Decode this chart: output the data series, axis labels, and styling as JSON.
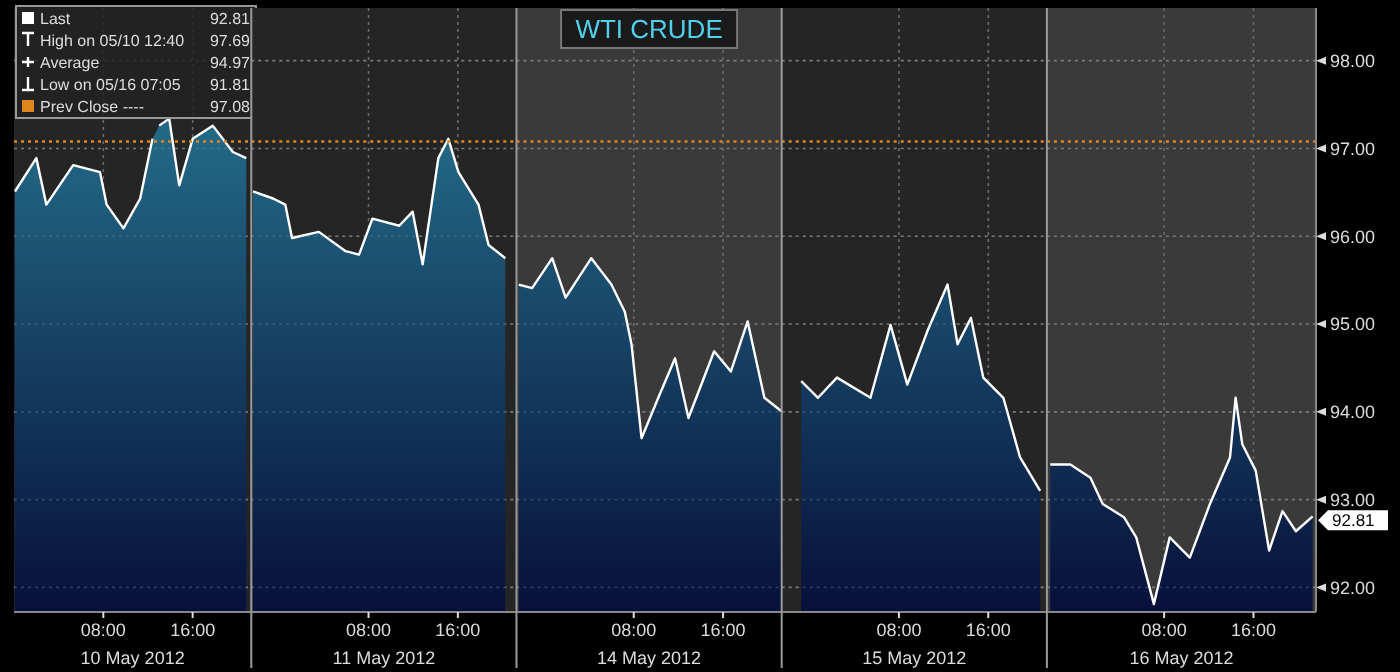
{
  "chart_data": [
    {
      "type": "area",
      "xlabel": "10 May 2012",
      "x": [
        "2012-05-10T00:05",
        "2012-05-10T02:00",
        "2012-05-10T02:54",
        "2012-05-10T05:18",
        "2012-05-10T07:42",
        "2012-05-10T08:18",
        "2012-05-10T09:48",
        "2012-05-10T11:18",
        "2012-05-10T12:24",
        "2012-05-10T12:40",
        "2012-05-10T13:00",
        "2012-05-10T13:54",
        "2012-05-10T14:48",
        "2012-05-10T16:00",
        "2012-05-10T17:48",
        "2012-05-10T19:36",
        "2012-05-10T20:48"
      ],
      "series": [
        {
          "color": "#2a7f99",
          "values": [
            96.51,
            96.89,
            96.36,
            96.81,
            96.73,
            96.36,
            96.09,
            96.43,
            97.11,
            null,
            97.26,
            97.34,
            96.58,
            97.11,
            97.26,
            96.96,
            96.89
          ]
        }
      ],
      "xlim": [
        "2012-05-10T00:00",
        "2012-05-10T21:15"
      ],
      "xticks": [
        {
          "value": "2012-05-10T08:00",
          "label": "08:00"
        },
        {
          "value": "2012-05-10T16:00",
          "label": "16:00"
        }
      ],
      "ylim": [
        91.72,
        98.6
      ],
      "yticks": [
        92,
        93,
        94,
        95,
        96,
        97,
        98
      ],
      "tick_labels": "x",
      "grid": true,
      "ref_lines": [
        {
          "axis": "y",
          "value": 97.08,
          "color": "#e0861c",
          "line_style": "dotted"
        }
      ],
      "annotations": [
        "Last",
        "92.81",
        "High on 05/10 12:40",
        "97.69",
        "Average",
        "94.97",
        "Low on 05/16 07:05",
        "91.81",
        "Prev Close ----",
        "97.08"
      ]
    },
    {
      "type": "area",
      "xlabel": "11 May 2012",
      "x": [
        "2012-05-10T21:39",
        "2012-05-10T23:27",
        "2012-05-11T00:33",
        "2012-05-11T01:09",
        "2012-05-11T03:33",
        "2012-05-11T05:57",
        "2012-05-11T07:09",
        "2012-05-11T08:21",
        "2012-05-11T10:45",
        "2012-05-11T11:57",
        "2012-05-11T12:51",
        "2012-05-11T14:15",
        "2012-05-11T15:09",
        "2012-05-11T16:03",
        "2012-05-11T17:51",
        "2012-05-11T18:45",
        "2012-05-11T20:15"
      ],
      "series": [
        {
          "color": "#2a7f99",
          "values": [
            96.51,
            96.43,
            96.36,
            95.98,
            96.05,
            95.83,
            95.79,
            96.2,
            96.12,
            96.28,
            95.68,
            96.89,
            97.11,
            96.73,
            96.36,
            95.9,
            95.75
          ]
        }
      ],
      "xlim": [
        "2012-05-10T21:30",
        "2012-05-11T21:15"
      ],
      "xticks": [
        {
          "value": "2012-05-11T08:00",
          "label": "08:00"
        },
        {
          "value": "2012-05-11T16:00",
          "label": "16:00"
        }
      ],
      "ylim": [
        91.72,
        98.6
      ],
      "yticks": [
        92,
        93,
        94,
        95,
        96,
        97,
        98
      ],
      "tick_labels": "x",
      "grid": true,
      "ref_lines": [
        {
          "axis": "y",
          "value": 97.08,
          "color": "#e0861c",
          "line_style": "dotted"
        }
      ]
    },
    {
      "type": "area",
      "title": "WTI CRUDE",
      "xlabel": "14 May 2012",
      "x": [
        "2012-05-13T21:42",
        "2012-05-13T22:54",
        "2012-05-14T00:42",
        "2012-05-14T01:54",
        "2012-05-14T04:12",
        "2012-05-14T06:00",
        "2012-05-14T07:12",
        "2012-05-14T07:48",
        "2012-05-14T08:42",
        "2012-05-14T10:12",
        "2012-05-14T11:42",
        "2012-05-14T12:54",
        "2012-05-14T15:12",
        "2012-05-14T16:42",
        "2012-05-14T18:12",
        "2012-05-14T19:42",
        "2012-05-14T21:12"
      ],
      "series": [
        {
          "color": "#2a7f99",
          "values": [
            95.45,
            95.41,
            95.75,
            95.3,
            95.75,
            95.45,
            95.14,
            94.77,
            93.7,
            94.16,
            94.61,
            93.93,
            94.69,
            94.46,
            95.03,
            94.16,
            94.01
          ]
        }
      ],
      "xlim": [
        "2012-05-13T21:30",
        "2012-05-14T21:15"
      ],
      "xticks": [
        {
          "value": "2012-05-14T08:00",
          "label": "08:00"
        },
        {
          "value": "2012-05-14T16:00",
          "label": "16:00"
        }
      ],
      "ylim": [
        91.72,
        98.6
      ],
      "yticks": [
        92,
        93,
        94,
        95,
        96,
        97,
        98
      ],
      "tick_labels": "x",
      "grid": true,
      "ref_lines": [
        {
          "axis": "y",
          "value": 97.08,
          "color": "#e0861c",
          "line_style": "dotted"
        }
      ],
      "bands": [
        {
          "axis": "x",
          "from": "2012-05-13T21:30",
          "to": "2012-05-14T21:15",
          "color": "#3a3a3a"
        }
      ]
    },
    {
      "type": "area",
      "xlabel": "15 May 2012",
      "x": [
        "2012-05-14T23:15",
        "2012-05-15T00:45",
        "2012-05-15T02:27",
        "2012-05-15T05:27",
        "2012-05-15T07:15",
        "2012-05-15T08:45",
        "2012-05-15T10:33",
        "2012-05-15T12:21",
        "2012-05-15T13:15",
        "2012-05-15T14:27",
        "2012-05-15T15:33",
        "2012-05-15T17:21",
        "2012-05-15T18:51",
        "2012-05-15T20:39"
      ],
      "series": [
        {
          "color": "#2a7f99",
          "values": [
            94.35,
            94.16,
            94.39,
            94.16,
            94.99,
            94.31,
            94.92,
            95.45,
            94.77,
            95.07,
            94.39,
            94.16,
            93.48,
            93.1
          ]
        }
      ],
      "xlim": [
        "2012-05-14T21:30",
        "2012-05-15T21:15"
      ],
      "xticks": [
        {
          "value": "2012-05-15T08:00",
          "label": "08:00"
        },
        {
          "value": "2012-05-15T16:00",
          "label": "16:00"
        }
      ],
      "ylim": [
        91.72,
        98.6
      ],
      "yticks": [
        92,
        93,
        94,
        95,
        96,
        97,
        98
      ],
      "tick_labels": "x",
      "grid": true,
      "ref_lines": [
        {
          "axis": "y",
          "value": 97.08,
          "color": "#e0861c",
          "line_style": "dotted"
        }
      ]
    },
    {
      "type": "area",
      "xlabel": "16 May 2012",
      "x": [
        "2012-05-15T21:48",
        "2012-05-15T23:36",
        "2012-05-16T01:24",
        "2012-05-16T02:30",
        "2012-05-16T04:24",
        "2012-05-16T05:30",
        "2012-05-16T07:05",
        "2012-05-16T08:30",
        "2012-05-16T10:18",
        "2012-05-16T12:06",
        "2012-05-16T13:54",
        "2012-05-16T14:24",
        "2012-05-16T15:00",
        "2012-05-16T16:12",
        "2012-05-16T17:24",
        "2012-05-16T18:36",
        "2012-05-16T19:48",
        "2012-05-16T21:18"
      ],
      "series": [
        {
          "color": "#2a7f99",
          "values": [
            93.4,
            93.4,
            93.25,
            92.95,
            92.8,
            92.57,
            91.81,
            92.57,
            92.34,
            92.95,
            93.48,
            94.16,
            93.63,
            93.33,
            92.42,
            92.87,
            92.64,
            92.81
          ]
        }
      ],
      "xlim": [
        "2012-05-15T21:30",
        "2012-05-16T21:36"
      ],
      "xticks": [
        {
          "value": "2012-05-16T08:00",
          "label": "08:00"
        },
        {
          "value": "2012-05-16T16:00",
          "label": "16:00"
        }
      ],
      "ylim": [
        91.72,
        98.6
      ],
      "yticks": [
        {
          "value": 92,
          "label": "92.00"
        },
        {
          "value": 93,
          "label": "93.00"
        },
        {
          "value": 94,
          "label": "94.00"
        },
        {
          "value": 95,
          "label": "95.00"
        },
        {
          "value": 96,
          "label": "96.00"
        },
        {
          "value": 97,
          "label": "97.00"
        },
        {
          "value": 98,
          "label": "98.00"
        }
      ],
      "grid": true,
      "ref_lines": [
        {
          "axis": "y",
          "value": 97.08,
          "color": "#e0861c",
          "line_style": "dotted"
        }
      ],
      "bands": [
        {
          "axis": "x",
          "from": "2012-05-15T21:30",
          "to": "2012-05-16T21:36",
          "color": "#3a3a3a"
        }
      ],
      "annotations": [
        {
          "text": "92.81",
          "x": "2012-05-16T21:18",
          "y": 92.81
        }
      ]
    }
  ]
}
